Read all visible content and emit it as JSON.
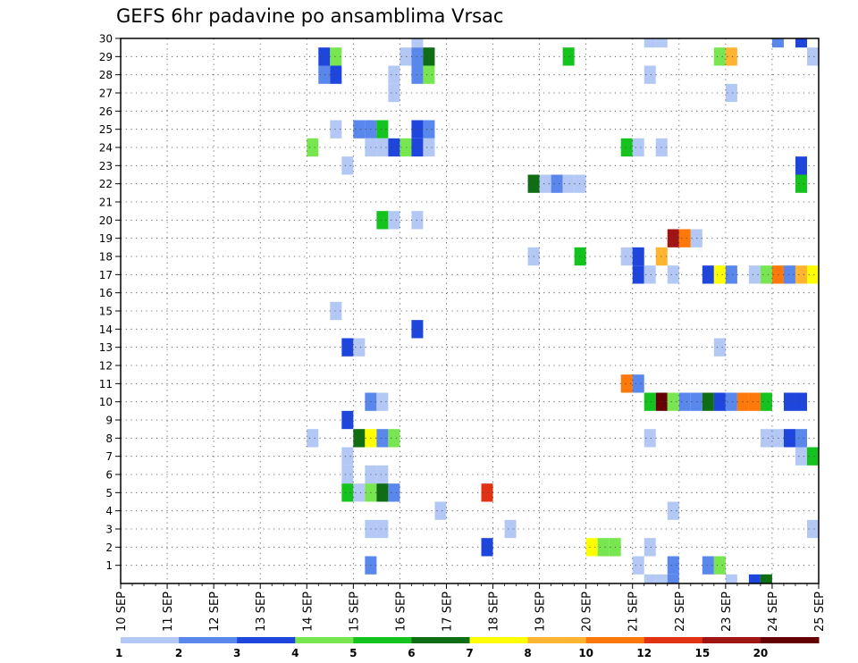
{
  "chart_data": {
    "type": "heatmap",
    "title": "GEFS 6hr padavine po ansamblima Vrsac",
    "y_members": [
      1,
      2,
      3,
      4,
      5,
      6,
      7,
      8,
      9,
      10,
      11,
      12,
      13,
      14,
      15,
      16,
      17,
      18,
      19,
      20,
      21,
      22,
      23,
      24,
      25,
      26,
      27,
      28,
      29,
      30
    ],
    "x_dates": [
      "10 SEP",
      "11 SEP",
      "12 SEP",
      "13 SEP",
      "14 SEP",
      "15 SEP",
      "16 SEP",
      "17 SEP",
      "18 SEP",
      "19 SEP",
      "20 SEP",
      "21 SEP",
      "22 SEP",
      "23 SEP",
      "24 SEP",
      "25 SEP"
    ],
    "x_steps_per_day": 4,
    "legend": {
      "labels": [
        "1",
        "2",
        "3",
        "4",
        "5",
        "6",
        "7",
        "8",
        "10",
        "12",
        "15",
        "20"
      ],
      "colors": [
        "#b4c8f5",
        "#5a87eb",
        "#1e46dc",
        "#78e650",
        "#14c31e",
        "#0f6e14",
        "#ffff00",
        "#ffb432",
        "#ff780a",
        "#e13214",
        "#a01414",
        "#640000"
      ]
    },
    "cells": [
      {
        "member": 30,
        "day": 16.25,
        "color": "#b4c8f5"
      },
      {
        "member": 30,
        "day": 21.25,
        "color": "#b4c8f5"
      },
      {
        "member": 30,
        "day": 21.5,
        "color": "#b4c8f5"
      },
      {
        "member": 30,
        "day": 24.0,
        "color": "#5a87eb"
      },
      {
        "member": 30,
        "day": 24.5,
        "color": "#1e46dc"
      },
      {
        "member": 29,
        "day": 14.25,
        "color": "#1e46dc"
      },
      {
        "member": 29,
        "day": 14.5,
        "color": "#78e650"
      },
      {
        "member": 29,
        "day": 16.0,
        "color": "#b4c8f5"
      },
      {
        "member": 29,
        "day": 16.25,
        "color": "#5a87eb"
      },
      {
        "member": 29,
        "day": 16.5,
        "color": "#0f6e14"
      },
      {
        "member": 29,
        "day": 19.5,
        "color": "#14c31e"
      },
      {
        "member": 29,
        "day": 22.75,
        "color": "#78e650"
      },
      {
        "member": 29,
        "day": 23.0,
        "color": "#ffb432"
      },
      {
        "member": 29,
        "day": 24.75,
        "color": "#b4c8f5"
      },
      {
        "member": 28,
        "day": 14.25,
        "color": "#5a87eb"
      },
      {
        "member": 28,
        "day": 14.5,
        "color": "#1e46dc"
      },
      {
        "member": 28,
        "day": 15.75,
        "color": "#b4c8f5"
      },
      {
        "member": 28,
        "day": 16.25,
        "color": "#5a87eb"
      },
      {
        "member": 28,
        "day": 16.5,
        "color": "#78e650"
      },
      {
        "member": 28,
        "day": 21.25,
        "color": "#b4c8f5"
      },
      {
        "member": 27,
        "day": 15.75,
        "color": "#b4c8f5"
      },
      {
        "member": 27,
        "day": 23.0,
        "color": "#b4c8f5"
      },
      {
        "member": 25,
        "day": 14.5,
        "color": "#b4c8f5"
      },
      {
        "member": 25,
        "day": 15.0,
        "color": "#5a87eb"
      },
      {
        "member": 25,
        "day": 15.25,
        "color": "#5a87eb"
      },
      {
        "member": 25,
        "day": 15.5,
        "color": "#14c31e"
      },
      {
        "member": 25,
        "day": 16.25,
        "color": "#1e46dc"
      },
      {
        "member": 25,
        "day": 16.5,
        "color": "#5a87eb"
      },
      {
        "member": 24,
        "day": 14.0,
        "color": "#78e650"
      },
      {
        "member": 24,
        "day": 15.25,
        "color": "#b4c8f5"
      },
      {
        "member": 24,
        "day": 15.5,
        "color": "#b4c8f5"
      },
      {
        "member": 24,
        "day": 15.75,
        "color": "#1e46dc"
      },
      {
        "member": 24,
        "day": 16.0,
        "color": "#78e650"
      },
      {
        "member": 24,
        "day": 16.25,
        "color": "#1e46dc"
      },
      {
        "member": 24,
        "day": 16.5,
        "color": "#b4c8f5"
      },
      {
        "member": 24,
        "day": 20.75,
        "color": "#14c31e"
      },
      {
        "member": 24,
        "day": 21.0,
        "color": "#b4c8f5"
      },
      {
        "member": 24,
        "day": 21.5,
        "color": "#b4c8f5"
      },
      {
        "member": 23,
        "day": 14.75,
        "color": "#b4c8f5"
      },
      {
        "member": 23,
        "day": 24.5,
        "color": "#1e46dc"
      },
      {
        "member": 22,
        "day": 18.75,
        "color": "#0f6e14"
      },
      {
        "member": 22,
        "day": 19.0,
        "color": "#b4c8f5"
      },
      {
        "member": 22,
        "day": 19.25,
        "color": "#5a87eb"
      },
      {
        "member": 22,
        "day": 19.5,
        "color": "#b4c8f5"
      },
      {
        "member": 22,
        "day": 19.75,
        "color": "#b4c8f5"
      },
      {
        "member": 22,
        "day": 24.5,
        "color": "#14c31e"
      },
      {
        "member": 20,
        "day": 15.5,
        "color": "#14c31e"
      },
      {
        "member": 20,
        "day": 15.75,
        "color": "#b4c8f5"
      },
      {
        "member": 20,
        "day": 16.25,
        "color": "#b4c8f5"
      },
      {
        "member": 19,
        "day": 21.75,
        "color": "#a01414"
      },
      {
        "member": 19,
        "day": 22.0,
        "color": "#ff780a"
      },
      {
        "member": 19,
        "day": 22.25,
        "color": "#b4c8f5"
      },
      {
        "member": 18,
        "day": 18.75,
        "color": "#b4c8f5"
      },
      {
        "member": 18,
        "day": 19.75,
        "color": "#14c31e"
      },
      {
        "member": 18,
        "day": 20.75,
        "color": "#b4c8f5"
      },
      {
        "member": 18,
        "day": 21.0,
        "color": "#1e46dc"
      },
      {
        "member": 18,
        "day": 21.5,
        "color": "#ffb432"
      },
      {
        "member": 17,
        "day": 21.0,
        "color": "#1e46dc"
      },
      {
        "member": 17,
        "day": 21.25,
        "color": "#b4c8f5"
      },
      {
        "member": 17,
        "day": 21.75,
        "color": "#b4c8f5"
      },
      {
        "member": 17,
        "day": 22.5,
        "color": "#1e46dc"
      },
      {
        "member": 17,
        "day": 22.75,
        "color": "#ffff00"
      },
      {
        "member": 17,
        "day": 23.0,
        "color": "#5a87eb"
      },
      {
        "member": 17,
        "day": 23.5,
        "color": "#b4c8f5"
      },
      {
        "member": 17,
        "day": 23.75,
        "color": "#78e650"
      },
      {
        "member": 17,
        "day": 24.0,
        "color": "#ff780a"
      },
      {
        "member": 17,
        "day": 24.25,
        "color": "#5a87eb"
      },
      {
        "member": 17,
        "day": 24.5,
        "color": "#ffb432"
      },
      {
        "member": 17,
        "day": 24.75,
        "color": "#ffff00"
      },
      {
        "member": 15,
        "day": 14.5,
        "color": "#b4c8f5"
      },
      {
        "member": 14,
        "day": 16.25,
        "color": "#1e46dc"
      },
      {
        "member": 13,
        "day": 14.75,
        "color": "#1e46dc"
      },
      {
        "member": 13,
        "day": 15.0,
        "color": "#b4c8f5"
      },
      {
        "member": 13,
        "day": 22.75,
        "color": "#b4c8f5"
      },
      {
        "member": 11,
        "day": 20.75,
        "color": "#ff780a"
      },
      {
        "member": 11,
        "day": 21.0,
        "color": "#5a87eb"
      },
      {
        "member": 10,
        "day": 15.25,
        "color": "#5a87eb"
      },
      {
        "member": 10,
        "day": 15.5,
        "color": "#b4c8f5"
      },
      {
        "member": 10,
        "day": 21.25,
        "color": "#14c31e"
      },
      {
        "member": 10,
        "day": 21.5,
        "color": "#640000"
      },
      {
        "member": 10,
        "day": 21.75,
        "color": "#78e650"
      },
      {
        "member": 10,
        "day": 22.0,
        "color": "#5a87eb"
      },
      {
        "member": 10,
        "day": 22.25,
        "color": "#5a87eb"
      },
      {
        "member": 10,
        "day": 22.5,
        "color": "#0f6e14"
      },
      {
        "member": 10,
        "day": 22.75,
        "color": "#1e46dc"
      },
      {
        "member": 10,
        "day": 23.0,
        "color": "#5a87eb"
      },
      {
        "member": 10,
        "day": 23.25,
        "color": "#ff780a"
      },
      {
        "member": 10,
        "day": 23.5,
        "color": "#ff780a"
      },
      {
        "member": 10,
        "day": 23.75,
        "color": "#14c31e"
      },
      {
        "member": 10,
        "day": 24.25,
        "color": "#1e46dc"
      },
      {
        "member": 10,
        "day": 24.5,
        "color": "#1e46dc"
      },
      {
        "member": 9,
        "day": 14.75,
        "color": "#1e46dc"
      },
      {
        "member": 8,
        "day": 14.0,
        "color": "#b4c8f5"
      },
      {
        "member": 8,
        "day": 15.0,
        "color": "#0f6e14"
      },
      {
        "member": 8,
        "day": 15.25,
        "color": "#ffff00"
      },
      {
        "member": 8,
        "day": 15.5,
        "color": "#5a87eb"
      },
      {
        "member": 8,
        "day": 15.75,
        "color": "#78e650"
      },
      {
        "member": 8,
        "day": 21.25,
        "color": "#b4c8f5"
      },
      {
        "member": 8,
        "day": 23.75,
        "color": "#b4c8f5"
      },
      {
        "member": 8,
        "day": 24.0,
        "color": "#b4c8f5"
      },
      {
        "member": 8,
        "day": 24.25,
        "color": "#1e46dc"
      },
      {
        "member": 8,
        "day": 24.5,
        "color": "#5a87eb"
      },
      {
        "member": 7,
        "day": 14.75,
        "color": "#b4c8f5"
      },
      {
        "member": 7,
        "day": 24.5,
        "color": "#b4c8f5"
      },
      {
        "member": 7,
        "day": 24.75,
        "color": "#14c31e"
      },
      {
        "member": 6,
        "day": 14.75,
        "color": "#b4c8f5"
      },
      {
        "member": 6,
        "day": 15.25,
        "color": "#b4c8f5"
      },
      {
        "member": 6,
        "day": 15.5,
        "color": "#b4c8f5"
      },
      {
        "member": 5,
        "day": 14.75,
        "color": "#14c31e"
      },
      {
        "member": 5,
        "day": 15.0,
        "color": "#b4c8f5"
      },
      {
        "member": 5,
        "day": 15.25,
        "color": "#78e650"
      },
      {
        "member": 5,
        "day": 15.5,
        "color": "#0f6e14"
      },
      {
        "member": 5,
        "day": 15.75,
        "color": "#5a87eb"
      },
      {
        "member": 5,
        "day": 17.75,
        "color": "#e13214"
      },
      {
        "member": 4,
        "day": 16.75,
        "color": "#b4c8f5"
      },
      {
        "member": 4,
        "day": 21.75,
        "color": "#b4c8f5"
      },
      {
        "member": 3,
        "day": 15.25,
        "color": "#b4c8f5"
      },
      {
        "member": 3,
        "day": 15.5,
        "color": "#b4c8f5"
      },
      {
        "member": 3,
        "day": 18.25,
        "color": "#b4c8f5"
      },
      {
        "member": 3,
        "day": 24.75,
        "color": "#b4c8f5"
      },
      {
        "member": 2,
        "day": 17.75,
        "color": "#1e46dc"
      },
      {
        "member": 2,
        "day": 20.0,
        "color": "#ffff00"
      },
      {
        "member": 2,
        "day": 20.25,
        "color": "#78e650"
      },
      {
        "member": 2,
        "day": 20.5,
        "color": "#78e650"
      },
      {
        "member": 2,
        "day": 21.25,
        "color": "#b4c8f5"
      },
      {
        "member": 1,
        "day": 15.25,
        "color": "#5a87eb"
      },
      {
        "member": 1,
        "day": 21.0,
        "color": "#b4c8f5"
      },
      {
        "member": 1,
        "day": 21.75,
        "color": "#5a87eb"
      },
      {
        "member": 1,
        "day": 22.5,
        "color": "#5a87eb"
      },
      {
        "member": 1,
        "day": 22.75,
        "color": "#78e650"
      },
      {
        "member": 0,
        "day": 21.25,
        "color": "#b4c8f5"
      },
      {
        "member": 0,
        "day": 21.5,
        "color": "#b4c8f5"
      },
      {
        "member": 0,
        "day": 21.75,
        "color": "#5a87eb"
      },
      {
        "member": 0,
        "day": 23.0,
        "color": "#b4c8f5"
      },
      {
        "member": 0,
        "day": 23.5,
        "color": "#1e46dc"
      },
      {
        "member": 0,
        "day": 23.75,
        "color": "#0f6e14"
      }
    ]
  }
}
